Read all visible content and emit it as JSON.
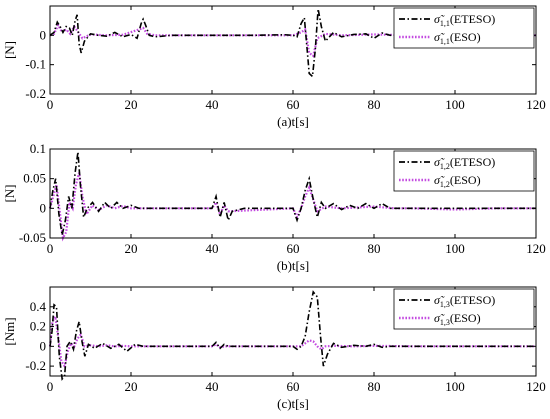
{
  "chart_data": [
    {
      "type": "line",
      "xlabel": "(a)t[s]",
      "ylabel": "[N]",
      "xlim": [
        0,
        120
      ],
      "ylim": [
        -0.2,
        0.1
      ],
      "xticks": [
        "0",
        "20",
        "40",
        "60",
        "80",
        "100",
        "120"
      ],
      "yticks": [
        "0",
        "-0.1",
        "-0.2"
      ],
      "ytick_values": [
        0,
        -0.1,
        -0.2
      ],
      "grid": false,
      "legend_position": "top-right",
      "series": [
        {
          "name": "σ̃",
          "sub": "1,1",
          "suffix": "(ETESO)",
          "color": "#000000",
          "dash": "dash-dot",
          "x": [
            0,
            1,
            1.8,
            2.5,
            3.2,
            4,
            4.8,
            5.5,
            6.2,
            6.7,
            7.2,
            7.7,
            8.5,
            10,
            12,
            14,
            16,
            18,
            20,
            21.5,
            22.5,
            23,
            23.6,
            24.5,
            26,
            30,
            40,
            50,
            58,
            60,
            61,
            62,
            62.8,
            63.5,
            64,
            64.8,
            65.5,
            66.2,
            67,
            68,
            70,
            72,
            75,
            78,
            80,
            82,
            84,
            90,
            100,
            110,
            120
          ],
          "y": [
            0,
            0.01,
            0.045,
            0.03,
            0.01,
            0.03,
            0.025,
            0.0,
            0.05,
            0.07,
            -0.03,
            -0.06,
            -0.02,
            0.005,
            0.0,
            -0.003,
            0.01,
            -0.005,
            0.003,
            -0.01,
            0.04,
            0.055,
            0.035,
            0.0,
            -0.005,
            0.0,
            0.0,
            0.0,
            0.002,
            0.0,
            -0.005,
            0.04,
            0.06,
            -0.05,
            -0.13,
            -0.14,
            -0.05,
            0.09,
            0.03,
            -0.02,
            0.01,
            -0.005,
            0.003,
            0.005,
            -0.01,
            0.008,
            0.0,
            0.0,
            0.0,
            0.0,
            0.0
          ]
        },
        {
          "name": "σ̃",
          "sub": "1,1",
          "suffix": "(ESO)",
          "color": "#c34be0",
          "dash": "dotted",
          "x": [
            0,
            1,
            2,
            3,
            4,
            5,
            6,
            7,
            8,
            10,
            14,
            18,
            22,
            23,
            24,
            26,
            40,
            60,
            62,
            63,
            64,
            65,
            66,
            68,
            72,
            80,
            90,
            120
          ],
          "y": [
            0,
            0.005,
            0.035,
            0.01,
            0.02,
            0.005,
            0.03,
            0.01,
            -0.01,
            0.003,
            0.0,
            0.002,
            0.02,
            0.025,
            0.005,
            0.0,
            0.0,
            0.0,
            0.01,
            0.02,
            -0.06,
            -0.07,
            -0.01,
            0.005,
            0.0,
            0.003,
            0.0,
            0.0
          ]
        }
      ]
    },
    {
      "type": "line",
      "xlabel": "(b)t[s]",
      "ylabel": "[N]",
      "xlim": [
        0,
        120
      ],
      "ylim": [
        -0.05,
        0.1
      ],
      "xticks": [
        "0",
        "20",
        "40",
        "60",
        "80",
        "100",
        "120"
      ],
      "yticks": [
        "0.1",
        "0.05",
        "0",
        "-0.05"
      ],
      "ytick_values": [
        0.1,
        0.05,
        0,
        -0.05
      ],
      "grid": false,
      "legend_position": "top-right",
      "series": [
        {
          "name": "σ̃",
          "sub": "1,2",
          "suffix": "(ETESO)",
          "color": "#000000",
          "dash": "dash-dot",
          "x": [
            0,
            0.7,
            1.4,
            2.2,
            3,
            3.8,
            4.6,
            5.4,
            6.2,
            6.9,
            7.5,
            8.3,
            9.2,
            10.5,
            12,
            13.5,
            15,
            16.5,
            18,
            20,
            22,
            26,
            32,
            38,
            40,
            41,
            42,
            43,
            44,
            45,
            48,
            55,
            60,
            61,
            62,
            63,
            64,
            65,
            66,
            67,
            68,
            70,
            72,
            74,
            76,
            78,
            80,
            82,
            84,
            90,
            100,
            110,
            120
          ],
          "y": [
            0,
            0.03,
            0.05,
            -0.01,
            -0.045,
            -0.02,
            0.02,
            0.0,
            0.06,
            0.095,
            0.04,
            -0.015,
            0.0,
            0.01,
            -0.005,
            0.01,
            0.0,
            0.01,
            0.0,
            0.005,
            0.0,
            0.0,
            0.0,
            0.0,
            0.0,
            0.02,
            -0.015,
            0.01,
            -0.02,
            -0.005,
            0.0,
            0.0,
            0.0,
            -0.02,
            0.0,
            0.03,
            0.05,
            0.015,
            -0.015,
            0.01,
            0.0,
            0.008,
            -0.002,
            0.005,
            0.0,
            0.008,
            0.0,
            0.008,
            0.0,
            0.0,
            0.0,
            0.0,
            0.0
          ]
        },
        {
          "name": "σ̃",
          "sub": "1,2",
          "suffix": "(ESO)",
          "color": "#c34be0",
          "dash": "dotted",
          "x": [
            0,
            0.8,
            1.6,
            2.4,
            3.2,
            4,
            4.8,
            5.6,
            6.4,
            7.2,
            8,
            9,
            10.5,
            12,
            14,
            16,
            18,
            20,
            24,
            40,
            41,
            42,
            43,
            44,
            60,
            61,
            62,
            63,
            64,
            65,
            66,
            68,
            72,
            80,
            85,
            90,
            100,
            110,
            120
          ],
          "y": [
            0,
            0.02,
            0.04,
            -0.005,
            -0.05,
            -0.04,
            0.01,
            0.0,
            0.04,
            0.06,
            0.02,
            -0.01,
            0.005,
            -0.003,
            0.005,
            0.0,
            0.004,
            0.0,
            0.0,
            0.0,
            0.01,
            -0.01,
            0.005,
            -0.005,
            0.0,
            -0.015,
            0.0,
            0.02,
            0.035,
            0.015,
            -0.005,
            0.003,
            0.0,
            0.003,
            0.0,
            0.0,
            -0.002,
            0.0,
            0.0
          ]
        }
      ]
    },
    {
      "type": "line",
      "xlabel": "(c)t[s]",
      "ylabel": "[Nm]",
      "xlim": [
        0,
        120
      ],
      "ylim": [
        -0.3,
        0.6
      ],
      "xticks": [
        "0",
        "20",
        "40",
        "60",
        "80",
        "100",
        "120"
      ],
      "yticks": [
        "0.4",
        "0.2",
        "0",
        "-0.2"
      ],
      "ytick_values": [
        0.4,
        0.2,
        0,
        -0.2
      ],
      "grid": false,
      "legend_position": "top-right",
      "series": [
        {
          "name": "σ̃",
          "sub": "1,3",
          "suffix": "(ETESO)",
          "color": "#000000",
          "dash": "dash-dot",
          "x": [
            0,
            0.5,
            1,
            1.6,
            2.3,
            3,
            3.6,
            4.2,
            5,
            5.8,
            6.5,
            7.2,
            7.9,
            8.6,
            9.5,
            11,
            13,
            15,
            17,
            19,
            21,
            23,
            26,
            32,
            40,
            41,
            42,
            43,
            44,
            46,
            55,
            60,
            61,
            62,
            63,
            64,
            65,
            66,
            66.8,
            67.5,
            68.5,
            70,
            72,
            75,
            78,
            80,
            82,
            84,
            90,
            100,
            110,
            120
          ],
          "y": [
            0,
            0.15,
            0.42,
            0.4,
            -0.1,
            -0.33,
            -0.3,
            0.0,
            0.05,
            -0.03,
            0.15,
            0.25,
            0.05,
            -0.1,
            0.02,
            -0.02,
            0.03,
            -0.02,
            0.02,
            -0.05,
            0.02,
            0.0,
            0.0,
            0.0,
            0.0,
            0.04,
            -0.02,
            0.02,
            0.0,
            0.0,
            0.0,
            0.0,
            -0.03,
            0.0,
            0.1,
            0.35,
            0.55,
            0.5,
            0.1,
            -0.2,
            -0.08,
            0.03,
            -0.01,
            0.01,
            0.0,
            0.02,
            -0.01,
            0.0,
            0.0,
            0.0,
            0.0,
            0.0
          ]
        },
        {
          "name": "σ̃",
          "sub": "1,3",
          "suffix": "(ESO)",
          "color": "#c34be0",
          "dash": "dotted",
          "x": [
            0,
            0.6,
            1.3,
            2,
            2.8,
            3.6,
            4.4,
            5.2,
            6,
            6.8,
            7.6,
            8.5,
            10,
            12,
            14,
            16,
            18,
            20,
            24,
            40,
            41,
            42,
            43,
            60,
            62,
            63,
            64,
            65,
            66,
            67,
            68,
            70,
            75,
            80,
            90,
            100,
            120
          ],
          "y": [
            0,
            0.25,
            0.3,
            0.1,
            -0.15,
            -0.2,
            -0.05,
            0.03,
            0.0,
            0.08,
            0.12,
            0.0,
            0.01,
            0.0,
            0.01,
            0.0,
            0.005,
            0.0,
            0.0,
            0.0,
            0.02,
            -0.01,
            0.0,
            0.0,
            0.0,
            0.03,
            0.06,
            0.05,
            0.0,
            -0.03,
            0.0,
            0.005,
            0.0,
            0.005,
            0.0,
            0.0,
            0.0
          ]
        }
      ]
    }
  ]
}
